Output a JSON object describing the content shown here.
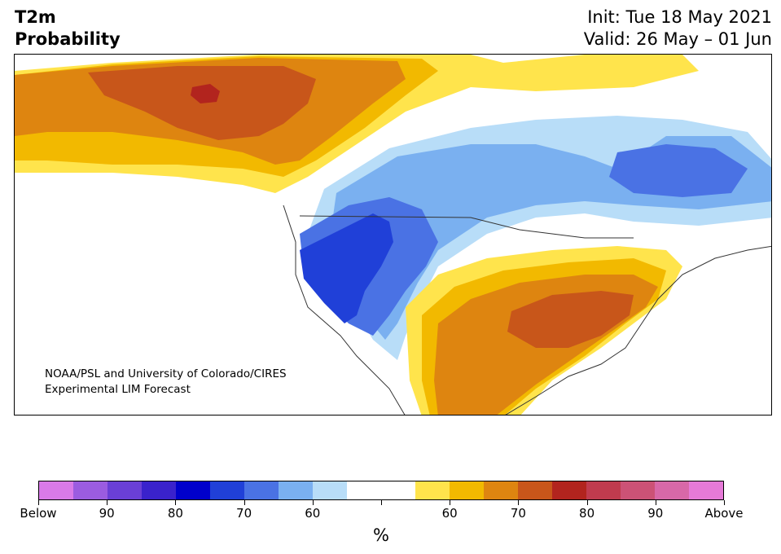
{
  "header": {
    "title_line1": "T2m",
    "title_line2": "Probability",
    "init": "Init: Tue 18 May 2021",
    "valid": "Valid: 26 May – 01 Jun"
  },
  "credit": {
    "line1": "NOAA/PSL and University of Colorado/CIRES",
    "line2": "Experimental LIM Forecast"
  },
  "colorbar": {
    "unit": "%",
    "colors": [
      "#d97ae8",
      "#9b5ce0",
      "#6a3fd6",
      "#3a22cc",
      "#0000cc",
      "#2040d8",
      "#4a72e4",
      "#7ab0f0",
      "#b8ddf8",
      "#ffffff",
      "#ffffff",
      "#ffe44c",
      "#f2b900",
      "#de8510",
      "#c8561a",
      "#b2241e",
      "#c03b4e",
      "#cc5276",
      "#d868a8",
      "#e67ad8"
    ],
    "labels": [
      "Below",
      "90",
      "80",
      "70",
      "60",
      "",
      "60",
      "70",
      "80",
      "90",
      "Above"
    ]
  },
  "colors": {
    "land_border": "#333333",
    "no_signal": "#ffffff"
  }
}
